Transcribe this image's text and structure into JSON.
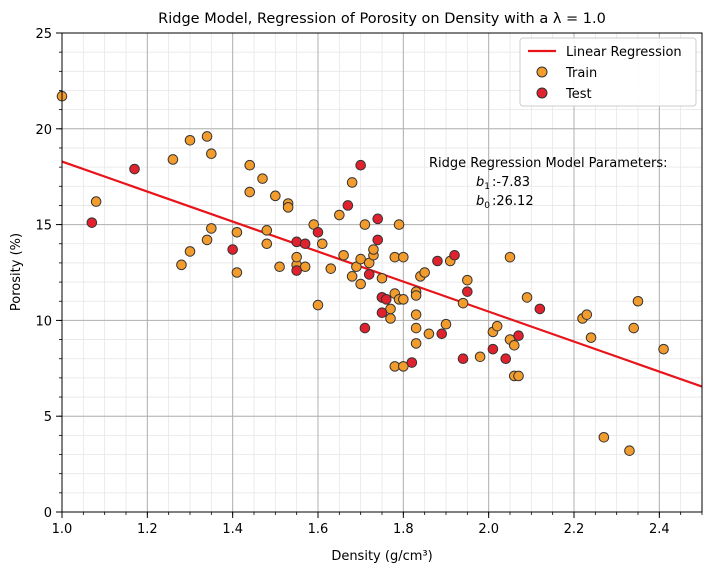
{
  "chart_data": {
    "type": "scatter",
    "title": "Ridge Model, Regression of Porosity on Density with a λ = 1.0",
    "xlabel": "Density (g/cm³)",
    "ylabel": "Porosity (%)",
    "xlim": [
      1.0,
      2.5
    ],
    "ylim": [
      0,
      25
    ],
    "xticks": [
      "1.0",
      "1.2",
      "1.4",
      "1.6",
      "1.8",
      "2.0",
      "2.2",
      "2.4"
    ],
    "yticks": [
      "0",
      "5",
      "10",
      "15",
      "20",
      "25"
    ],
    "grid": true,
    "legend_position": "top-right",
    "legend": {
      "line": "Linear Regression",
      "train": "Train",
      "test": "Test"
    },
    "colors": {
      "regression": "#e8141a",
      "train": "#f39c2e",
      "test": "#e0212e",
      "edge": "#333333"
    },
    "regression": {
      "b1": -7.83,
      "b0": 26.12
    },
    "annotation": {
      "heading": "Ridge Regression Model Parameters:",
      "b1_text": ":-7.83",
      "b0_text": ":26.12"
    },
    "train": [
      [
        1.0,
        21.7
      ],
      [
        1.08,
        16.2
      ],
      [
        1.26,
        18.4
      ],
      [
        1.28,
        12.9
      ],
      [
        1.3,
        13.6
      ],
      [
        1.3,
        19.4
      ],
      [
        1.34,
        19.6
      ],
      [
        1.34,
        14.2
      ],
      [
        1.35,
        18.7
      ],
      [
        1.35,
        14.8
      ],
      [
        1.41,
        14.6
      ],
      [
        1.41,
        12.5
      ],
      [
        1.44,
        18.1
      ],
      [
        1.44,
        16.7
      ],
      [
        1.47,
        17.4
      ],
      [
        1.48,
        14.7
      ],
      [
        1.48,
        14.0
      ],
      [
        1.5,
        16.5
      ],
      [
        1.51,
        12.8
      ],
      [
        1.53,
        16.1
      ],
      [
        1.53,
        15.9
      ],
      [
        1.55,
        12.9
      ],
      [
        1.55,
        13.3
      ],
      [
        1.57,
        12.8
      ],
      [
        1.59,
        15.0
      ],
      [
        1.6,
        10.8
      ],
      [
        1.61,
        14.0
      ],
      [
        1.63,
        12.7
      ],
      [
        1.65,
        15.5
      ],
      [
        1.66,
        13.4
      ],
      [
        1.68,
        17.2
      ],
      [
        1.68,
        12.3
      ],
      [
        1.69,
        12.8
      ],
      [
        1.7,
        11.9
      ],
      [
        1.7,
        13.2
      ],
      [
        1.71,
        15.0
      ],
      [
        1.72,
        13.0
      ],
      [
        1.73,
        13.4
      ],
      [
        1.73,
        13.7
      ],
      [
        1.75,
        12.2
      ],
      [
        1.75,
        11.2
      ],
      [
        1.77,
        10.1
      ],
      [
        1.77,
        10.6
      ],
      [
        1.78,
        11.4
      ],
      [
        1.78,
        7.6
      ],
      [
        1.78,
        13.3
      ],
      [
        1.79,
        15.0
      ],
      [
        1.79,
        11.1
      ],
      [
        1.8,
        11.1
      ],
      [
        1.8,
        13.3
      ],
      [
        1.8,
        7.6
      ],
      [
        1.83,
        11.5
      ],
      [
        1.83,
        11.3
      ],
      [
        1.83,
        10.3
      ],
      [
        1.83,
        9.6
      ],
      [
        1.83,
        8.8
      ],
      [
        1.84,
        12.3
      ],
      [
        1.85,
        12.5
      ],
      [
        1.86,
        9.3
      ],
      [
        1.9,
        9.8
      ],
      [
        1.91,
        13.1
      ],
      [
        1.94,
        10.9
      ],
      [
        1.95,
        12.1
      ],
      [
        1.98,
        8.1
      ],
      [
        2.01,
        9.4
      ],
      [
        2.02,
        9.7
      ],
      [
        2.05,
        13.3
      ],
      [
        2.05,
        9.0
      ],
      [
        2.06,
        8.7
      ],
      [
        2.06,
        7.1
      ],
      [
        2.07,
        7.1
      ],
      [
        2.09,
        11.2
      ],
      [
        2.22,
        10.1
      ],
      [
        2.23,
        10.3
      ],
      [
        2.24,
        9.1
      ],
      [
        2.27,
        3.9
      ],
      [
        2.33,
        3.2
      ],
      [
        2.34,
        9.6
      ],
      [
        2.35,
        11.0
      ],
      [
        2.41,
        8.5
      ]
    ],
    "test": [
      [
        1.07,
        15.1
      ],
      [
        1.17,
        17.9
      ],
      [
        1.4,
        13.7
      ],
      [
        1.55,
        14.1
      ],
      [
        1.55,
        12.6
      ],
      [
        1.57,
        14.0
      ],
      [
        1.6,
        14.6
      ],
      [
        1.67,
        16.0
      ],
      [
        1.7,
        18.1
      ],
      [
        1.71,
        9.6
      ],
      [
        1.72,
        12.4
      ],
      [
        1.74,
        15.3
      ],
      [
        1.74,
        14.2
      ],
      [
        1.75,
        10.4
      ],
      [
        1.75,
        11.2
      ],
      [
        1.76,
        11.1
      ],
      [
        1.82,
        7.8
      ],
      [
        1.88,
        13.1
      ],
      [
        1.89,
        9.3
      ],
      [
        1.92,
        13.4
      ],
      [
        1.94,
        8.0
      ],
      [
        1.95,
        11.5
      ],
      [
        2.01,
        8.5
      ],
      [
        2.04,
        8.0
      ],
      [
        2.07,
        9.2
      ],
      [
        2.12,
        10.6
      ]
    ]
  }
}
